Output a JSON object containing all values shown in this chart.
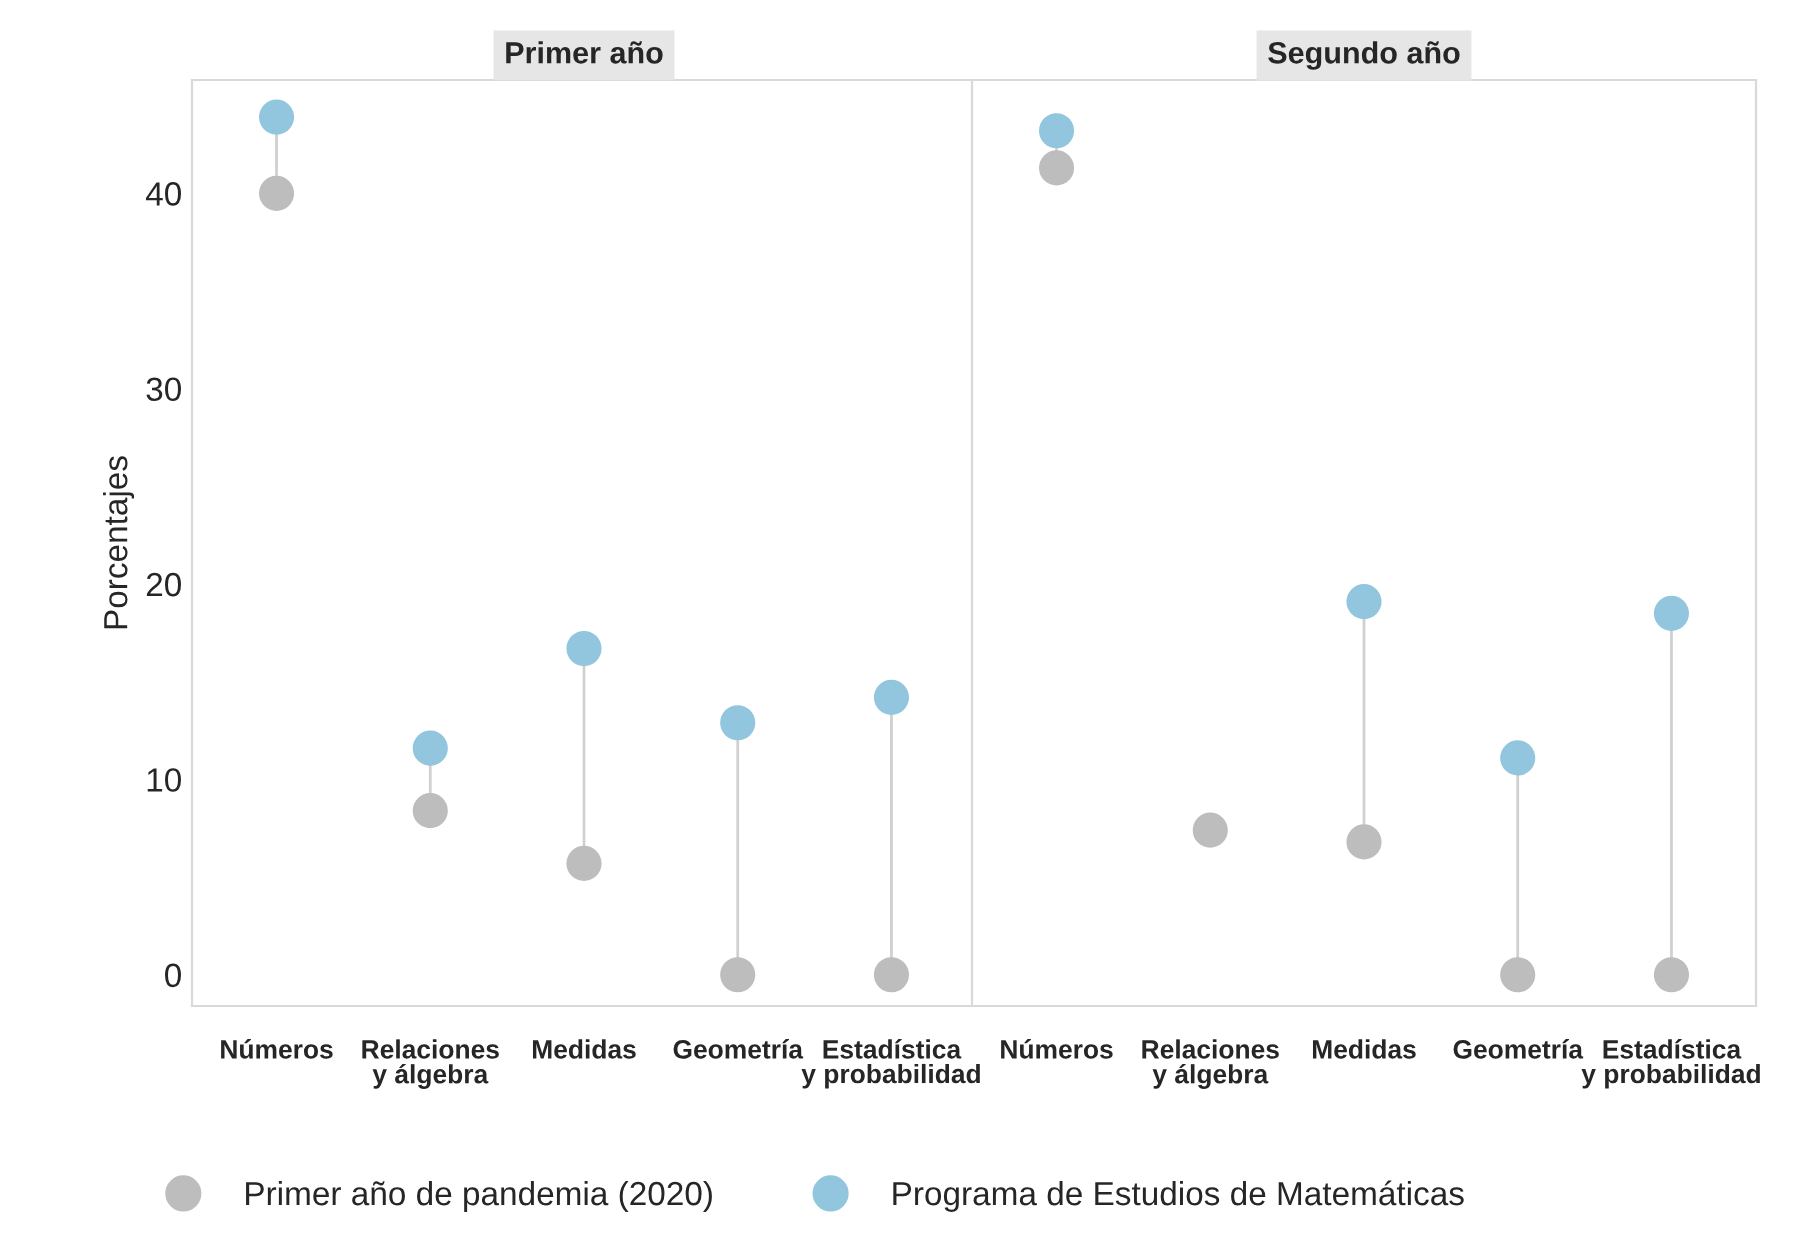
{
  "chart_data": [
    {
      "type": "scatter",
      "title": "Primer año",
      "ylabel": "Porcentajes",
      "categories": [
        "Números",
        "Relaciones\ny álgebra",
        "Medidas",
        "Geometría",
        "Estadística\ny probabilidad"
      ],
      "ylim": [
        -1.6,
        45.8
      ],
      "yticks": [
        0,
        10,
        20,
        30,
        40
      ],
      "grid": false,
      "legend": "bottom",
      "marker": "circle",
      "series": [
        {
          "name": "Primer año de pandemia (2020)",
          "color": "#bdbdbd",
          "values": [
            40,
            8.4,
            5.7,
            0,
            0
          ]
        },
        {
          "name": "Programa de Estudios de Matemáticas",
          "color": "#92c5de",
          "values": [
            43.9,
            11.6,
            16.7,
            12.9,
            14.2
          ]
        }
      ]
    },
    {
      "type": "scatter",
      "title": "Segundo año",
      "categories": [
        "Números",
        "Relaciones\ny álgebra",
        "Medidas",
        "Geometría",
        "Estadística\ny probabilidad"
      ],
      "ylim": [
        -1.6,
        45.8
      ],
      "yticks": [
        0,
        10,
        20,
        30,
        40
      ],
      "grid": false,
      "tick_labels": "x",
      "marker": "circle",
      "series": [
        {
          "color": "#bdbdbd",
          "values": [
            41.3,
            7.4,
            6.8,
            0,
            0
          ]
        },
        {
          "color": "#92c5de",
          "values": [
            43.2,
            null,
            19.1,
            11.1,
            18.5
          ]
        }
      ]
    }
  ]
}
